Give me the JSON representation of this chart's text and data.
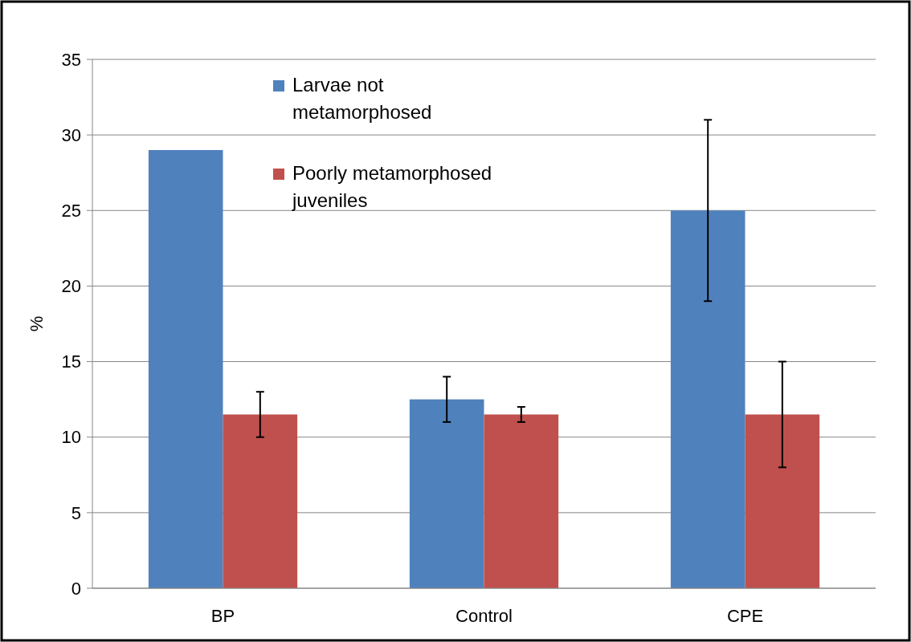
{
  "chart_data": {
    "type": "bar",
    "ylabel": "%",
    "categories": [
      "BP",
      "Control",
      "CPE"
    ],
    "series": [
      {
        "name": "Larvae not metamorphosed",
        "color": "#4f81bd",
        "values": [
          29,
          12.5,
          25
        ],
        "errors": [
          null,
          [
            11,
            14
          ],
          [
            19,
            31
          ]
        ]
      },
      {
        "name": "Poorly metamorphosed juveniles",
        "color": "#c0504d",
        "values": [
          11.5,
          11.5,
          11.5
        ],
        "errors": [
          [
            10,
            13
          ],
          [
            11,
            12
          ],
          [
            8,
            15
          ]
        ]
      }
    ],
    "ylim": [
      0,
      35
    ],
    "yticks": [
      0,
      5,
      10,
      15,
      20,
      25,
      30,
      35
    ],
    "grid": "y",
    "legend": "top"
  }
}
